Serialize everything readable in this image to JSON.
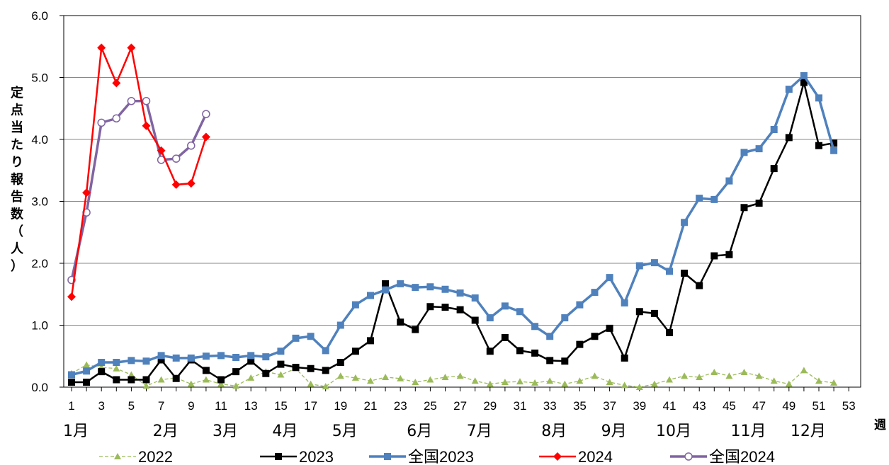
{
  "chart_data": {
    "type": "line",
    "ylabel": "定点当たり報告数（人）",
    "xlabel": "週",
    "ylim": [
      0,
      6
    ],
    "y_ticks": [
      "0.0",
      "1.0",
      "2.0",
      "3.0",
      "4.0",
      "5.0",
      "6.0"
    ],
    "xlim": [
      1,
      53
    ],
    "x_ticks": [
      1,
      3,
      5,
      7,
      9,
      11,
      13,
      15,
      17,
      19,
      21,
      23,
      25,
      27,
      29,
      31,
      33,
      35,
      37,
      39,
      41,
      43,
      45,
      47,
      49,
      51,
      53
    ],
    "months": [
      {
        "label": "1月",
        "week": 1
      },
      {
        "label": "2月",
        "week": 7
      },
      {
        "label": "3月",
        "week": 11
      },
      {
        "label": "4月",
        "week": 15
      },
      {
        "label": "5月",
        "week": 19
      },
      {
        "label": "6月",
        "week": 24
      },
      {
        "label": "7月",
        "week": 28
      },
      {
        "label": "8月",
        "week": 33
      },
      {
        "label": "9月",
        "week": 37
      },
      {
        "label": "10月",
        "week": 41
      },
      {
        "label": "11月",
        "week": 46
      },
      {
        "label": "12月",
        "week": 50
      }
    ],
    "grid": true,
    "legend_position": "bottom",
    "series": [
      {
        "name": "2022",
        "color": "#9bbb59",
        "marker": "triangle",
        "dashed": true,
        "values": [
          0.22,
          0.36,
          0.32,
          0.3,
          0.2,
          0.02,
          0.12,
          0.15,
          0.05,
          0.12,
          0.05,
          0.02,
          0.15,
          0.25,
          0.2,
          0.3,
          0.05,
          0.01,
          0.18,
          0.15,
          0.1,
          0.16,
          0.14,
          0.08,
          0.12,
          0.16,
          0.18,
          0.1,
          0.05,
          0.08,
          0.09,
          0.07,
          0.1,
          0.05,
          0.1,
          0.18,
          0.08,
          0.03,
          0.0,
          0.05,
          0.12,
          0.18,
          0.16,
          0.24,
          0.18,
          0.24,
          0.18,
          0.1,
          0.05,
          0.27,
          0.1,
          0.07
        ]
      },
      {
        "name": "2023",
        "color": "#000000",
        "marker": "square",
        "dashed": false,
        "values": [
          0.08,
          0.08,
          0.25,
          0.12,
          0.12,
          0.12,
          0.44,
          0.14,
          0.44,
          0.27,
          0.12,
          0.25,
          0.42,
          0.22,
          0.37,
          0.32,
          0.3,
          0.27,
          0.4,
          0.58,
          0.75,
          1.67,
          1.05,
          0.93,
          1.3,
          1.29,
          1.25,
          1.08,
          0.58,
          0.8,
          0.59,
          0.55,
          0.43,
          0.42,
          0.69,
          0.82,
          0.95,
          0.47,
          1.22,
          1.19,
          0.88,
          1.84,
          1.64,
          2.12,
          2.14,
          2.9,
          2.97,
          3.53,
          4.03,
          4.92,
          3.9,
          3.94
        ]
      },
      {
        "name": "全国2023",
        "color": "#4f81bd",
        "marker": "square",
        "dashed": false,
        "values": [
          0.2,
          0.26,
          0.4,
          0.4,
          0.43,
          0.42,
          0.51,
          0.47,
          0.47,
          0.5,
          0.51,
          0.48,
          0.51,
          0.49,
          0.58,
          0.79,
          0.82,
          0.59,
          1.0,
          1.33,
          1.48,
          1.57,
          1.67,
          1.61,
          1.62,
          1.58,
          1.52,
          1.44,
          1.12,
          1.31,
          1.22,
          0.98,
          0.82,
          1.12,
          1.33,
          1.53,
          1.77,
          1.36,
          1.96,
          2.01,
          1.87,
          2.66,
          3.05,
          3.03,
          3.33,
          3.79,
          3.85,
          4.16,
          4.81,
          5.03,
          4.67,
          3.82
        ]
      },
      {
        "name": "2024",
        "color": "#ff0000",
        "marker": "diamond",
        "dashed": false,
        "values": [
          1.46,
          3.14,
          5.48,
          4.91,
          5.48,
          4.22,
          3.82,
          3.27,
          3.29,
          4.04
        ]
      },
      {
        "name": "全国2024",
        "color": "#8064a2",
        "marker": "circle",
        "dashed": false,
        "values": [
          1.73,
          2.82,
          4.27,
          4.34,
          4.62,
          4.62,
          3.67,
          3.69,
          3.9,
          4.41
        ]
      }
    ]
  }
}
